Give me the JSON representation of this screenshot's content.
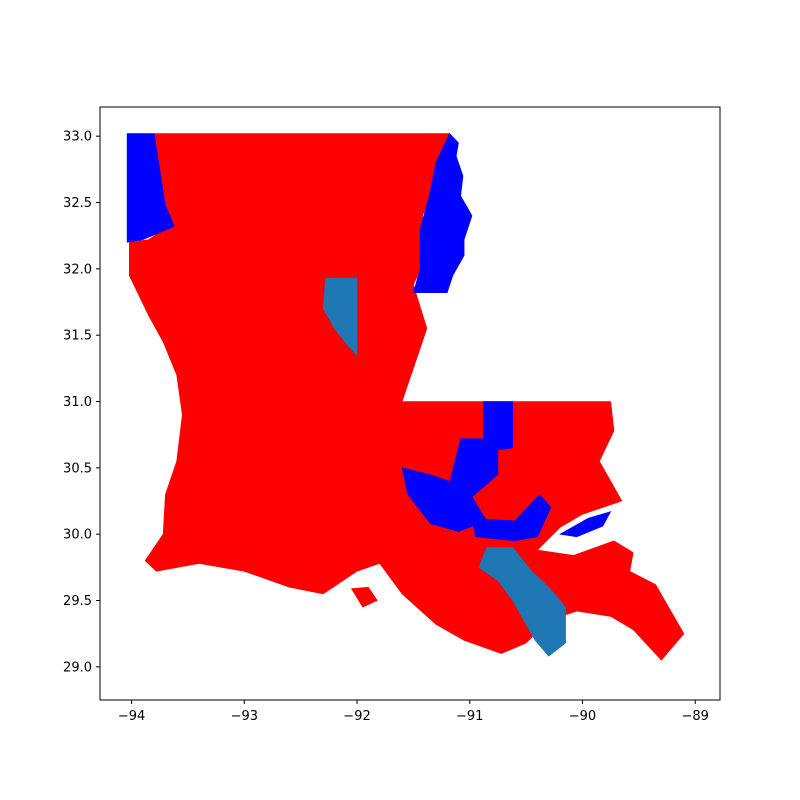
{
  "chart_data": {
    "type": "choropleth",
    "title": "",
    "xlabel": "",
    "ylabel": "",
    "xlim": [
      -94.28,
      -88.78
    ],
    "ylim": [
      28.75,
      33.22
    ],
    "xticks": [
      -94,
      -93,
      -92,
      -91,
      -90,
      -89
    ],
    "yticks": [
      29.0,
      29.5,
      30.0,
      30.5,
      31.0,
      31.5,
      32.0,
      32.5,
      33.0
    ],
    "xtick_labels": [
      "−94",
      "−93",
      "−92",
      "−91",
      "−90",
      "−89"
    ],
    "ytick_labels": [
      "29.0",
      "29.5",
      "30.0",
      "30.5",
      "31.0",
      "31.5",
      "32.0",
      "32.5",
      "33.0"
    ],
    "grid": false,
    "colors": {
      "red": "#ff0000",
      "blue": "#0000ff",
      "steelblue": "#1f77b4",
      "background": "#ffffff",
      "axes": "#000000"
    },
    "regions": [
      {
        "color": "red",
        "polygons": [
          [
            [
              -93.8,
              33.02
            ],
            [
              -91.18,
              33.02
            ],
            [
              -91.32,
              32.6
            ],
            [
              -91.42,
              32.4
            ],
            [
              -91.38,
              32.1
            ],
            [
              -91.5,
              31.88
            ],
            [
              -91.38,
              31.55
            ],
            [
              -91.52,
              31.2
            ],
            [
              -91.6,
              31.0
            ],
            [
              -89.75,
              31.0
            ],
            [
              -89.72,
              30.78
            ],
            [
              -89.85,
              30.55
            ],
            [
              -89.65,
              30.25
            ],
            [
              -90.0,
              30.15
            ],
            [
              -90.2,
              30.05
            ],
            [
              -90.4,
              29.88
            ],
            [
              -90.08,
              29.84
            ],
            [
              -89.72,
              29.95
            ],
            [
              -89.55,
              29.86
            ],
            [
              -89.58,
              29.72
            ],
            [
              -89.35,
              29.62
            ],
            [
              -89.1,
              29.25
            ],
            [
              -89.3,
              29.05
            ],
            [
              -89.55,
              29.28
            ],
            [
              -89.75,
              29.38
            ],
            [
              -90.05,
              29.42
            ],
            [
              -90.3,
              29.35
            ],
            [
              -90.5,
              29.18
            ],
            [
              -90.72,
              29.1
            ],
            [
              -91.05,
              29.2
            ],
            [
              -91.3,
              29.32
            ],
            [
              -91.6,
              29.55
            ],
            [
              -91.8,
              29.78
            ],
            [
              -92.0,
              29.72
            ],
            [
              -92.3,
              29.55
            ],
            [
              -92.6,
              29.6
            ],
            [
              -93.0,
              29.72
            ],
            [
              -93.4,
              29.78
            ],
            [
              -93.78,
              29.72
            ],
            [
              -93.88,
              29.8
            ],
            [
              -93.72,
              30.0
            ],
            [
              -93.7,
              30.3
            ],
            [
              -93.6,
              30.55
            ],
            [
              -93.55,
              30.9
            ],
            [
              -93.6,
              31.2
            ],
            [
              -93.72,
              31.45
            ],
            [
              -93.85,
              31.65
            ],
            [
              -94.02,
              31.95
            ],
            [
              -94.02,
              32.2
            ],
            [
              -93.85,
              32.22
            ],
            [
              -93.68,
              32.32
            ],
            [
              -93.72,
              32.55
            ],
            [
              -93.8,
              32.8
            ]
          ],
          [
            [
              -92.05,
              29.59
            ],
            [
              -91.95,
              29.45
            ],
            [
              -91.82,
              29.5
            ],
            [
              -91.9,
              29.6
            ]
          ],
          [
            [
              -91.1,
              29.3
            ],
            [
              -91.0,
              29.22
            ],
            [
              -90.92,
              29.27
            ],
            [
              -91.02,
              29.34
            ]
          ]
        ]
      },
      {
        "color": "blue",
        "polygons": [
          [
            [
              -94.04,
              33.02
            ],
            [
              -93.8,
              33.02
            ],
            [
              -93.75,
              32.75
            ],
            [
              -93.7,
              32.48
            ],
            [
              -93.62,
              32.32
            ],
            [
              -93.9,
              32.22
            ],
            [
              -94.04,
              32.2
            ]
          ],
          [
            [
              -91.18,
              33.02
            ],
            [
              -91.1,
              32.95
            ],
            [
              -91.12,
              32.85
            ],
            [
              -91.06,
              32.7
            ],
            [
              -91.08,
              32.55
            ],
            [
              -90.98,
              32.4
            ],
            [
              -91.05,
              32.22
            ],
            [
              -91.05,
              32.1
            ],
            [
              -91.15,
              31.95
            ],
            [
              -91.2,
              31.82
            ],
            [
              -91.5,
              31.82
            ],
            [
              -91.44,
              32.0
            ],
            [
              -91.44,
              32.3
            ],
            [
              -91.36,
              32.55
            ],
            [
              -91.3,
              32.8
            ]
          ],
          [
            [
              -90.88,
              31.0
            ],
            [
              -90.62,
              31.0
            ],
            [
              -90.62,
              30.65
            ],
            [
              -90.88,
              30.62
            ]
          ],
          [
            [
              -91.08,
              30.72
            ],
            [
              -90.75,
              30.72
            ],
            [
              -90.75,
              30.45
            ],
            [
              -90.98,
              30.28
            ],
            [
              -91.2,
              30.32
            ]
          ],
          [
            [
              -91.6,
              30.5
            ],
            [
              -91.35,
              30.45
            ],
            [
              -91.12,
              30.38
            ],
            [
              -90.98,
              30.28
            ],
            [
              -90.85,
              30.1
            ],
            [
              -91.1,
              30.02
            ],
            [
              -91.35,
              30.08
            ],
            [
              -91.55,
              30.3
            ]
          ],
          [
            [
              -90.98,
              30.12
            ],
            [
              -90.6,
              30.1
            ],
            [
              -90.38,
              30.3
            ],
            [
              -90.28,
              30.2
            ],
            [
              -90.4,
              29.98
            ],
            [
              -90.6,
              29.95
            ],
            [
              -90.95,
              29.98
            ]
          ],
          [
            [
              -90.2,
              30.0
            ],
            [
              -89.95,
              30.12
            ],
            [
              -89.75,
              30.17
            ],
            [
              -89.82,
              30.06
            ],
            [
              -90.05,
              29.98
            ]
          ]
        ]
      },
      {
        "color": "steelblue",
        "polygons": [
          [
            [
              -92.28,
              31.93
            ],
            [
              -92.0,
              31.93
            ],
            [
              -92.0,
              31.35
            ],
            [
              -92.08,
              31.42
            ],
            [
              -92.2,
              31.55
            ],
            [
              -92.3,
              31.7
            ]
          ],
          [
            [
              -90.85,
              29.9
            ],
            [
              -90.62,
              29.9
            ],
            [
              -90.45,
              29.72
            ],
            [
              -90.3,
              29.6
            ],
            [
              -90.15,
              29.45
            ],
            [
              -90.15,
              29.18
            ],
            [
              -90.3,
              29.08
            ],
            [
              -90.42,
              29.2
            ],
            [
              -90.5,
              29.32
            ],
            [
              -90.62,
              29.5
            ],
            [
              -90.75,
              29.65
            ],
            [
              -90.92,
              29.75
            ]
          ]
        ]
      }
    ]
  }
}
